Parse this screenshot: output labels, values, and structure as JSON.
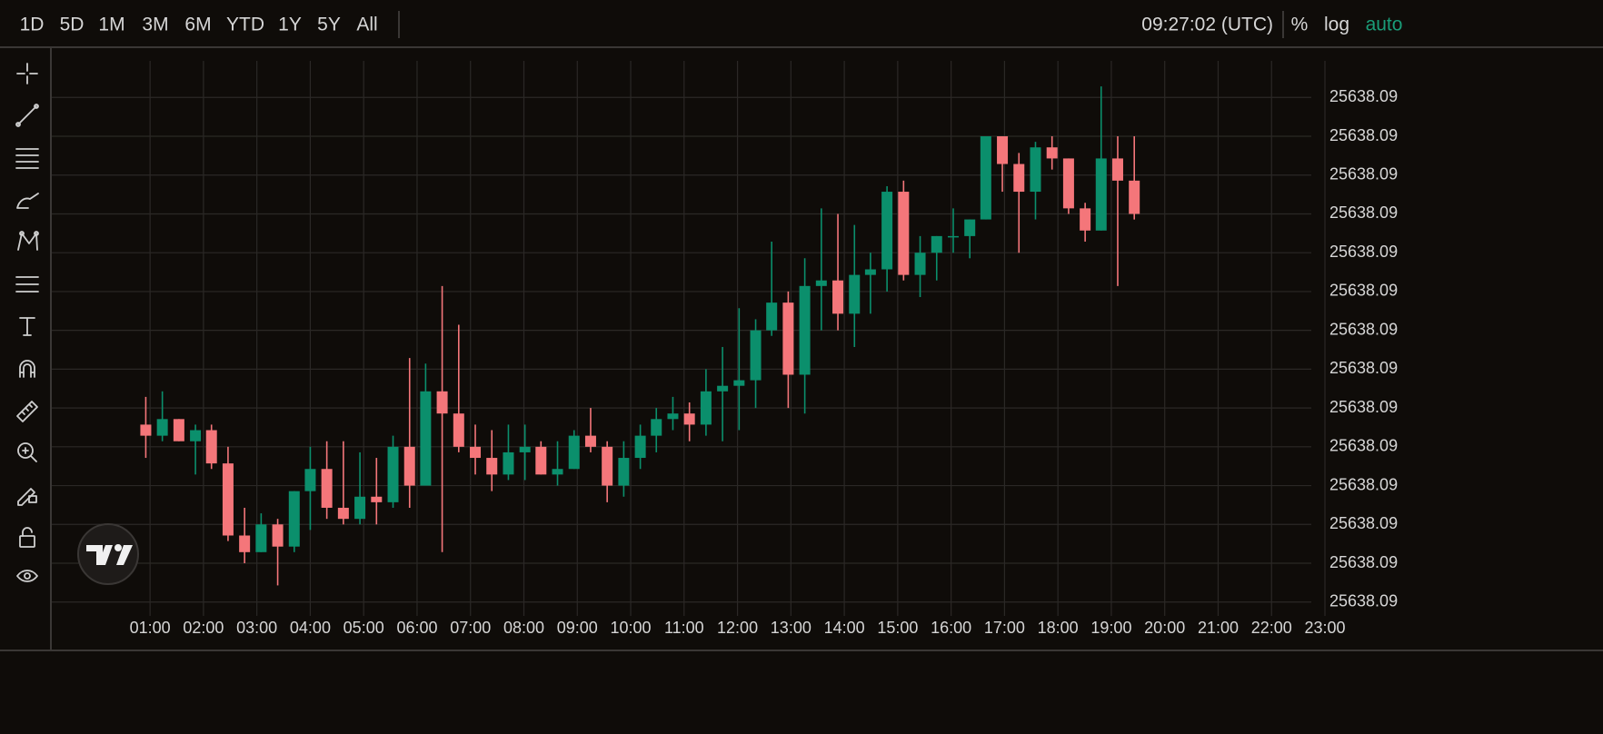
{
  "toolbar": {
    "ranges": [
      "1D",
      "5D",
      "1M",
      "3M",
      "6M",
      "YTD",
      "1Y",
      "5Y",
      "All"
    ],
    "clock": "09:27:02 (UTC)",
    "percent": "%",
    "log": "log",
    "auto": "auto"
  },
  "chart_data": {
    "type": "candlestick",
    "x": [
      0.92,
      1.23,
      1.54,
      1.85,
      2.15,
      2.46,
      2.77,
      3.08,
      3.39,
      3.7,
      4.0,
      4.31,
      4.62,
      4.93,
      5.24,
      5.55,
      5.86,
      6.16,
      6.47,
      6.78,
      7.09,
      7.4,
      7.71,
      8.02,
      8.32,
      8.63,
      8.94,
      9.25,
      9.56,
      9.87,
      10.18,
      10.48,
      10.79,
      11.1,
      11.41,
      11.72,
      12.03,
      12.34,
      12.64,
      12.95,
      13.26,
      13.57,
      13.88,
      14.19,
      14.49,
      14.8,
      15.11,
      15.42,
      15.73,
      16.04,
      16.35,
      16.65,
      16.96,
      17.27,
      17.58,
      17.89,
      18.2,
      18.51,
      18.81,
      19.12,
      19.43
    ],
    "open": [
      25638.0887,
      25638.0885,
      25638.0888,
      25638.0884,
      25638.0886,
      25638.088,
      25638.0867,
      25638.0864,
      25638.0869,
      25638.0865,
      25638.0875,
      25638.0879,
      25638.0872,
      25638.087,
      25638.0874,
      25638.0873,
      25638.0883,
      25638.0876,
      25638.0893,
      25638.0889,
      25638.0883,
      25638.0881,
      25638.0878,
      25638.0882,
      25638.0883,
      25638.0878,
      25638.0879,
      25638.0885,
      25638.0883,
      25638.0876,
      25638.0881,
      25638.0885,
      25638.0888,
      25638.0889,
      25638.0887,
      25638.0893,
      25638.0894,
      25638.0895,
      25638.0904,
      25638.0909,
      25638.0896,
      25638.0912,
      25638.0913,
      25638.0907,
      25638.0914,
      25638.0915,
      25638.0929,
      25638.0914,
      25638.0918,
      25638.0921,
      25638.0921,
      25638.0924,
      25638.0939,
      25638.0934,
      25638.0929,
      25638.0937,
      25638.0935,
      25638.0926,
      25638.0922,
      25638.0935,
      25638.0931
    ],
    "high": [
      25638.0892,
      25638.0893,
      25638.0888,
      25638.0887,
      25638.0887,
      25638.0883,
      25638.0872,
      25638.0871,
      25638.087,
      25638.0875,
      25638.0883,
      25638.0884,
      25638.0884,
      25638.0882,
      25638.0881,
      25638.0885,
      25638.0899,
      25638.0898,
      25638.0912,
      25638.0905,
      25638.0887,
      25638.0886,
      25638.0887,
      25638.0887,
      25638.0884,
      25638.0884,
      25638.0886,
      25638.089,
      25638.0884,
      25638.0884,
      25638.0887,
      25638.089,
      25638.0892,
      25638.0891,
      25638.0897,
      25638.0901,
      25638.0908,
      25638.0906,
      25638.092,
      25638.0911,
      25638.0917,
      25638.0926,
      25638.0925,
      25638.0923,
      25638.0918,
      25638.093,
      25638.0931,
      25638.0921,
      25638.0921,
      25638.0926,
      25638.0924,
      25638.0939,
      25638.0939,
      25638.0936,
      25638.0938,
      25638.0939,
      25638.0935,
      25638.0927,
      25638.0948,
      25638.0939,
      25638.0939
    ],
    "low": [
      25638.0881,
      25638.0884,
      25638.0884,
      25638.0878,
      25638.0879,
      25638.0866,
      25638.0862,
      25638.0864,
      25638.0858,
      25638.0864,
      25638.0868,
      25638.087,
      25638.0869,
      25638.0869,
      25638.0869,
      25638.0872,
      25638.0872,
      25638.0876,
      25638.0864,
      25638.0882,
      25638.0878,
      25638.0875,
      25638.0877,
      25638.0877,
      25638.0878,
      25638.0876,
      25638.0879,
      25638.0882,
      25638.0873,
      25638.0874,
      25638.0879,
      25638.0882,
      25638.0886,
      25638.0884,
      25638.0885,
      25638.0884,
      25638.0886,
      25638.089,
      25638.0903,
      25638.089,
      25638.0889,
      25638.0904,
      25638.0904,
      25638.0901,
      25638.0907,
      25638.0911,
      25638.0913,
      25638.091,
      25638.0913,
      25638.0918,
      25638.0917,
      25638.0924,
      25638.0929,
      25638.0918,
      25638.0924,
      25638.0933,
      25638.0925,
      25638.092,
      25638.0922,
      25638.0912,
      25638.0924
    ],
    "close": [
      25638.0885,
      25638.0888,
      25638.0884,
      25638.0886,
      25638.088,
      25638.0867,
      25638.0864,
      25638.0869,
      25638.0865,
      25638.0875,
      25638.0879,
      25638.0872,
      25638.087,
      25638.0874,
      25638.0873,
      25638.0883,
      25638.0876,
      25638.0893,
      25638.0889,
      25638.0883,
      25638.0881,
      25638.0878,
      25638.0882,
      25638.0883,
      25638.0878,
      25638.0879,
      25638.0885,
      25638.0883,
      25638.0876,
      25638.0881,
      25638.0885,
      25638.0888,
      25638.0889,
      25638.0887,
      25638.0893,
      25638.0894,
      25638.0895,
      25638.0904,
      25638.0909,
      25638.0896,
      25638.0912,
      25638.0913,
      25638.0907,
      25638.0914,
      25638.0915,
      25638.0929,
      25638.0914,
      25638.0918,
      25638.0921,
      25638.0921,
      25638.0924,
      25638.0939,
      25638.0934,
      25638.0929,
      25638.0937,
      25638.0935,
      25638.0926,
      25638.0922,
      25638.0935,
      25638.0931,
      25638.0925
    ],
    "up_color": "#0b8f6c",
    "down_color": "#f4767a",
    "xlim": [
      -0.84,
      23
    ],
    "xticks": [
      {
        "value": 1,
        "label": "01:00"
      },
      {
        "value": 2,
        "label": "02:00"
      },
      {
        "value": 3,
        "label": "03:00"
      },
      {
        "value": 4,
        "label": "04:00"
      },
      {
        "value": 5,
        "label": "05:00"
      },
      {
        "value": 6,
        "label": "06:00"
      },
      {
        "value": 7,
        "label": "07:00"
      },
      {
        "value": 8,
        "label": "08:00"
      },
      {
        "value": 9,
        "label": "09:00"
      },
      {
        "value": 10,
        "label": "10:00"
      },
      {
        "value": 11,
        "label": "11:00"
      },
      {
        "value": 12,
        "label": "12:00"
      },
      {
        "value": 13,
        "label": "13:00"
      },
      {
        "value": 14,
        "label": "14:00"
      },
      {
        "value": 15,
        "label": "15:00"
      },
      {
        "value": 16,
        "label": "16:00"
      },
      {
        "value": 17,
        "label": "17:00"
      },
      {
        "value": 18,
        "label": "18:00"
      },
      {
        "value": 19,
        "label": "19:00"
      },
      {
        "value": 20,
        "label": "20:00"
      },
      {
        "value": 21,
        "label": "21:00"
      },
      {
        "value": 22,
        "label": "22:00"
      },
      {
        "value": 23,
        "label": "23:00"
      }
    ],
    "ylim": [
      25638.08525,
      25638.09526
    ],
    "yticks": [
      {
        "value": 25638.0855,
        "label": "25638.09"
      },
      {
        "value": 25638.0862,
        "label": "25638.09"
      },
      {
        "value": 25638.0869,
        "label": "25638.09"
      },
      {
        "value": 25638.0876,
        "label": "25638.09"
      },
      {
        "value": 25638.0883,
        "label": "25638.09"
      },
      {
        "value": 25638.089,
        "label": "25638.09"
      },
      {
        "value": 25638.0897,
        "label": "25638.09"
      },
      {
        "value": 25638.0904,
        "label": "25638.09"
      },
      {
        "value": 25638.0911,
        "label": "25638.09"
      },
      {
        "value": 25638.0918,
        "label": "25638.09"
      },
      {
        "value": 25638.0925,
        "label": "25638.09"
      },
      {
        "value": 25638.0932,
        "label": "25638.09"
      },
      {
        "value": 25638.0939,
        "label": "25638.09"
      },
      {
        "value": 25638.0946,
        "label": "25638.09"
      }
    ],
    "grid": true
  }
}
